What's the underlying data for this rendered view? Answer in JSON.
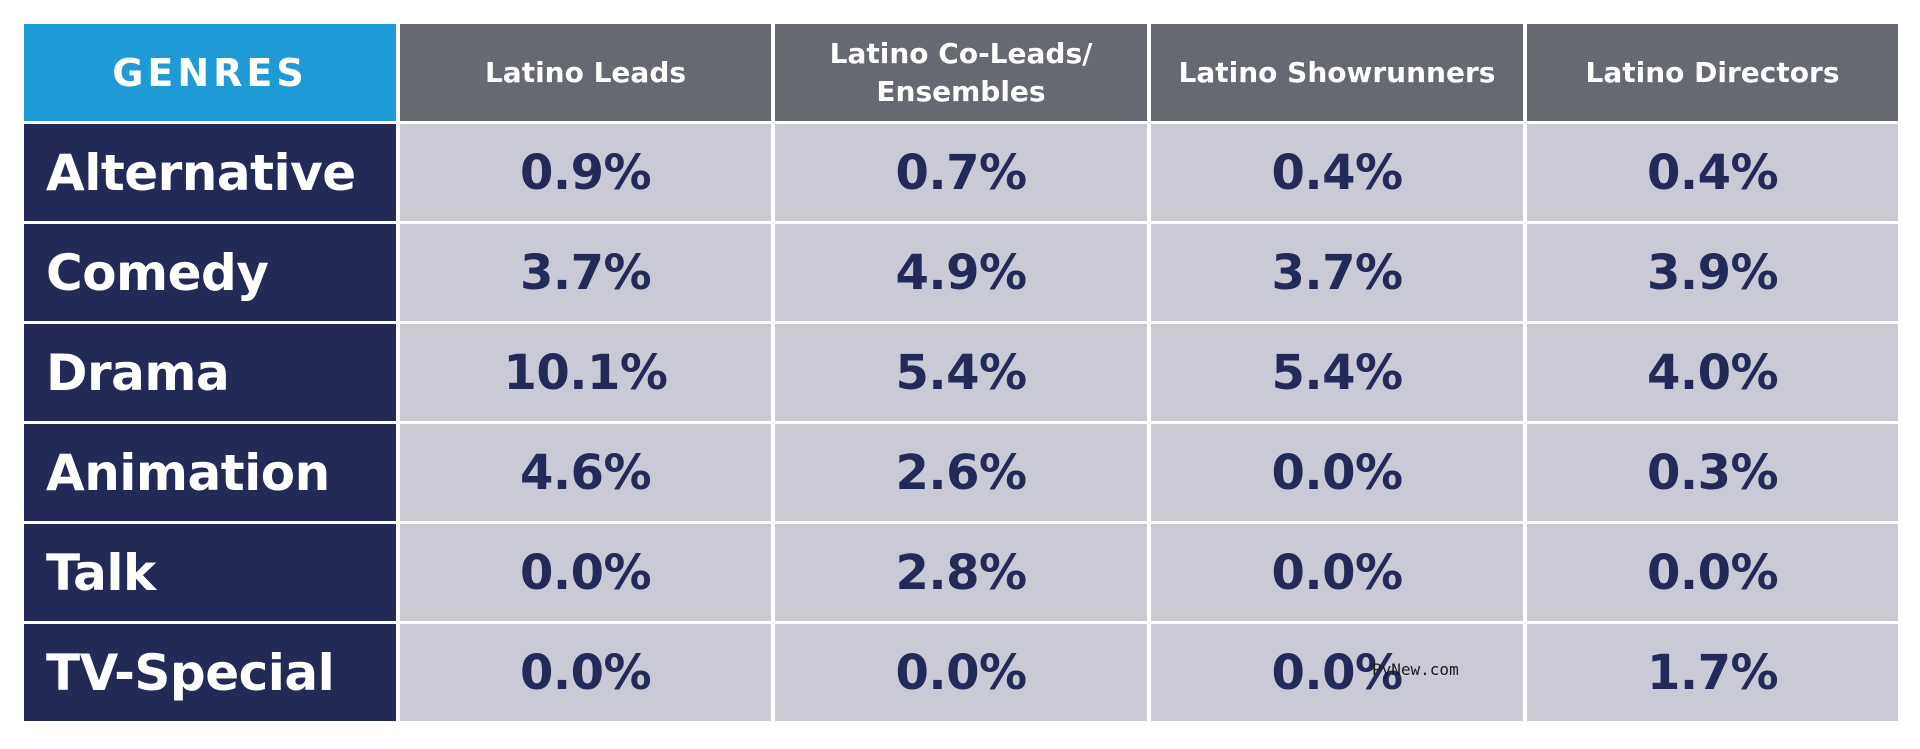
{
  "chart_data": {
    "type": "table",
    "columns": [
      "GENRES",
      "Latino Leads",
      "Latino Co-Leads/ Ensembles",
      "Latino Showrunners",
      "Latino Directors"
    ],
    "rows": [
      {
        "genre": "Alternative",
        "values": [
          "0.9%",
          "0.7%",
          "0.4%",
          "0.4%"
        ]
      },
      {
        "genre": "Comedy",
        "values": [
          "3.7%",
          "4.9%",
          "3.7%",
          "3.9%"
        ]
      },
      {
        "genre": "Drama",
        "values": [
          "10.1%",
          "5.4%",
          "5.4%",
          "4.0%"
        ]
      },
      {
        "genre": "Animation",
        "values": [
          "4.6%",
          "2.6%",
          "0.0%",
          "0.3%"
        ]
      },
      {
        "genre": "Talk",
        "values": [
          "0.0%",
          "2.8%",
          "0.0%",
          "0.0%"
        ]
      },
      {
        "genre": "TV-Special",
        "values": [
          "0.0%",
          "0.0%",
          "0.0%",
          "1.7%"
        ]
      }
    ]
  },
  "colors": {
    "genres_header": "#1e9ad6",
    "column_header": "#666872",
    "genre_cell": "#232a57",
    "value_cell": "#c9cad6",
    "value_text": "#232a57"
  },
  "watermark": "PyNew.com"
}
